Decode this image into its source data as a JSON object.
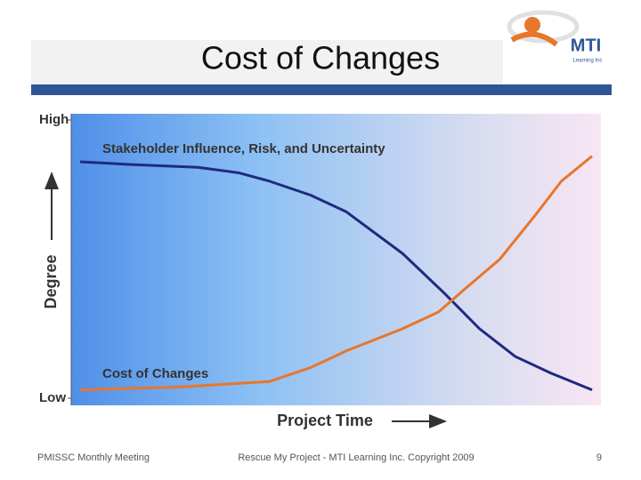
{
  "slide_title": "Cost of Changes",
  "logo": {
    "name": "MTI",
    "tagline": "Learning Inc"
  },
  "footer": {
    "left": "PMISSC Monthly Meeting",
    "center": "Rescue My Project - MTI Learning Inc. Copyright 2009",
    "page": "9"
  },
  "chart_data": {
    "type": "line",
    "x_label": "Project Time",
    "y_label": "Degree",
    "xlim": [
      0,
      100
    ],
    "ylim": [
      0,
      100
    ],
    "yticks": [
      {
        "value": 100,
        "label": "High"
      },
      {
        "value": 0,
        "label": "Low"
      }
    ],
    "series": [
      {
        "name": "Stakeholder Influence, Risk, and Uncertainty",
        "color": "#1f2a80",
        "x": [
          0,
          10,
          23,
          31,
          37,
          45,
          52,
          63,
          71,
          78,
          85,
          92,
          100
        ],
        "values": [
          85,
          84,
          83,
          81,
          78,
          73,
          67,
          52,
          38,
          25,
          15,
          9,
          3
        ]
      },
      {
        "name": "Cost of Changes",
        "color": "#e8762b",
        "x": [
          0,
          19,
          37,
          45,
          52,
          63,
          70,
          75,
          82,
          89,
          94,
          100
        ],
        "values": [
          3,
          4,
          6,
          11,
          17,
          25,
          31,
          39,
          50,
          66,
          78,
          87
        ]
      }
    ]
  }
}
